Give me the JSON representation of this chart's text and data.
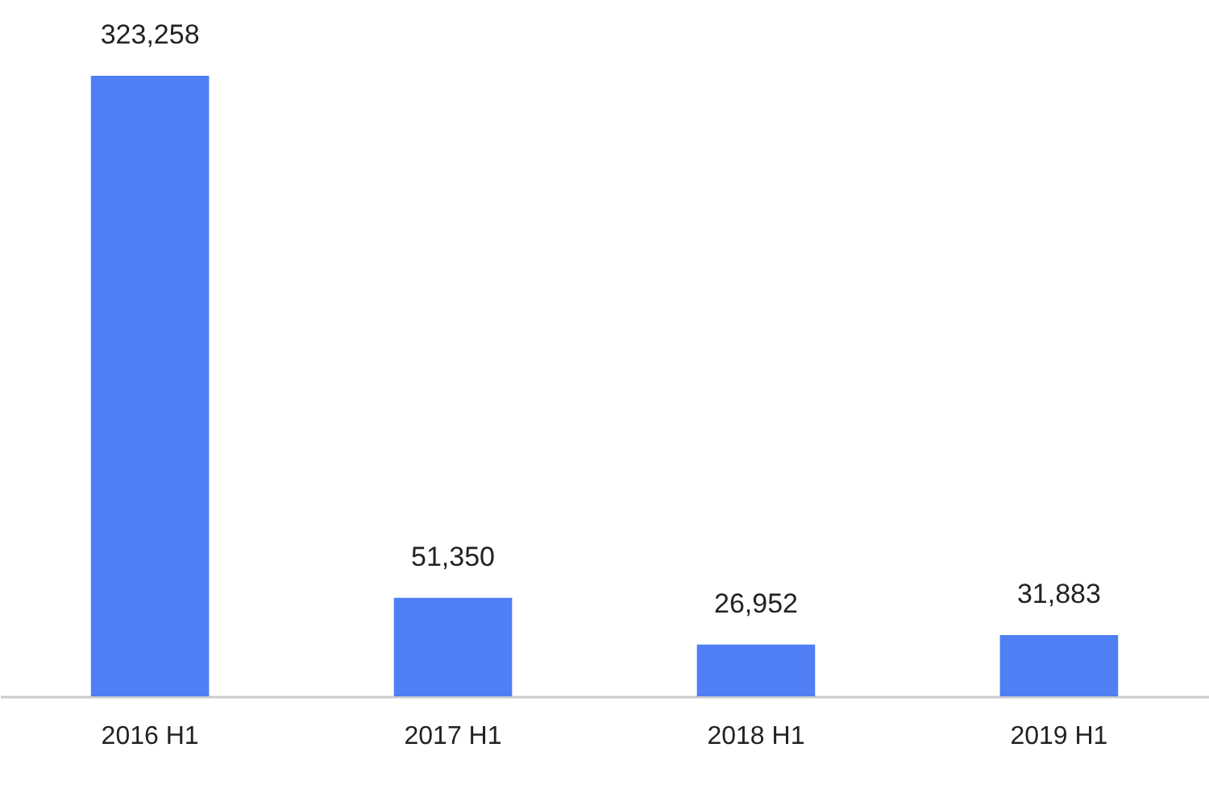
{
  "chart_data": {
    "type": "bar",
    "categories": [
      "2016 H1",
      "2017 H1",
      "2018 H1",
      "2019 H1"
    ],
    "values": [
      323258,
      51350,
      26952,
      31883
    ],
    "value_labels": [
      "323,258",
      "51,350",
      "26,952",
      "31,883"
    ],
    "color": "#4f7ef5",
    "grid": false
  }
}
